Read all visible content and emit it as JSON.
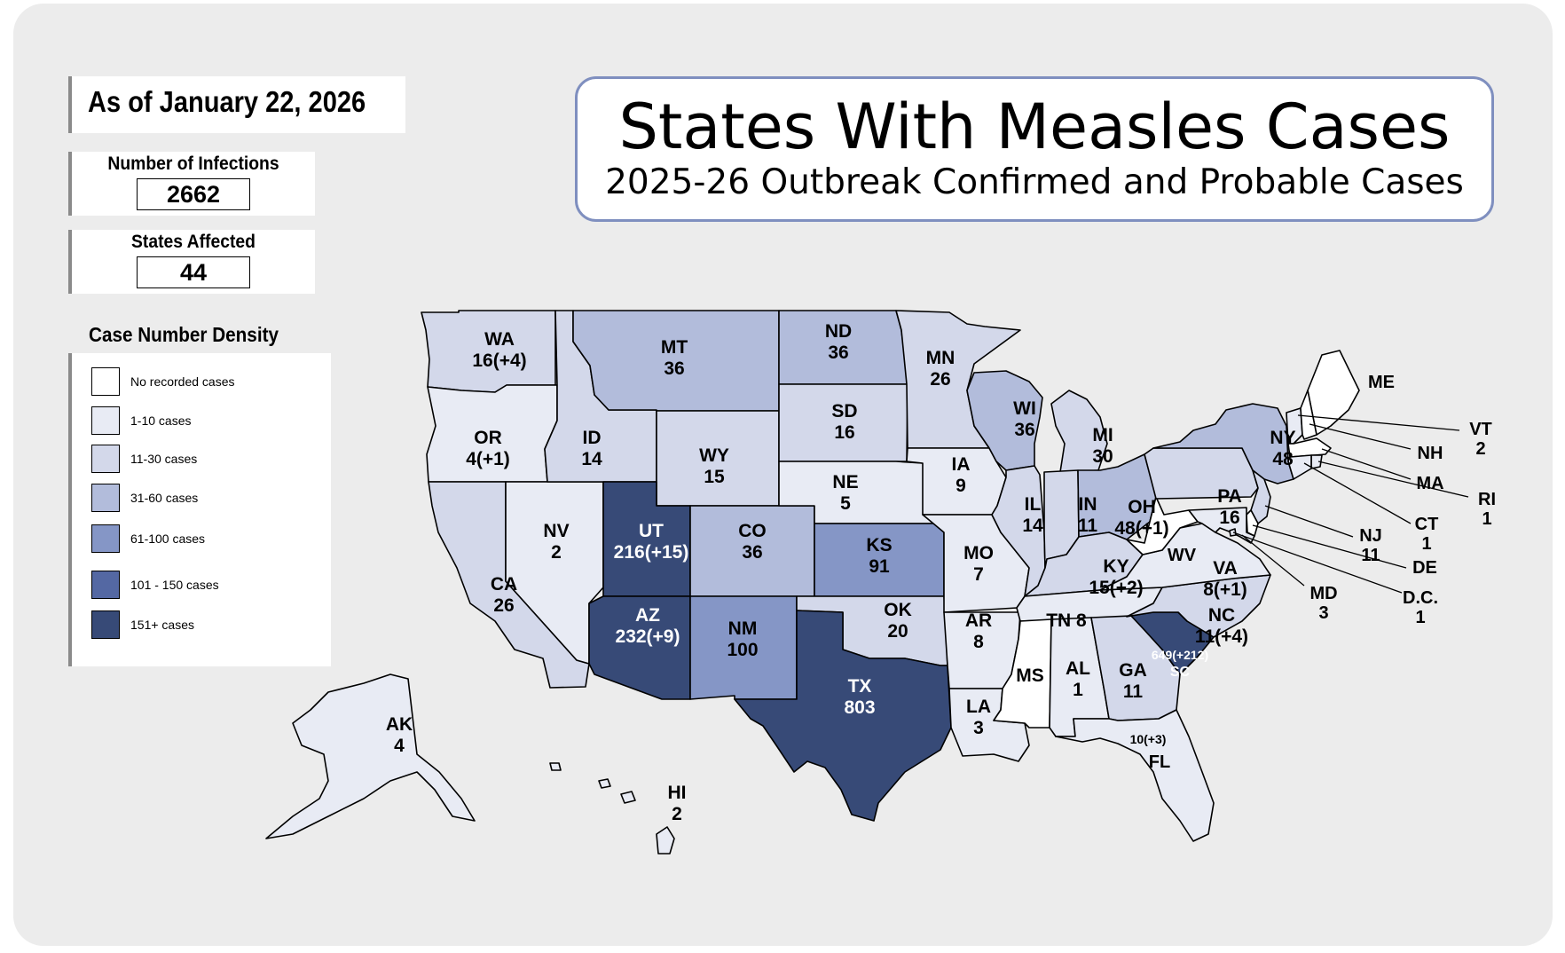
{
  "as_of": "As of January 22, 2026",
  "title": "States With Measles Cases",
  "subtitle": "2025-26 Outbreak Confirmed and Probable Cases",
  "infections": {
    "label": "Number of Infections",
    "value": "2662"
  },
  "states_affected": {
    "label": "States Affected",
    "value": "44"
  },
  "legend": {
    "title": "Case Number Density",
    "items": [
      {
        "label": "No recorded cases",
        "color": "#ffffff"
      },
      {
        "label": "1-10 cases",
        "color": "#e8ebf4"
      },
      {
        "label": "11-30 cases",
        "color": "#d3d8ea"
      },
      {
        "label": "31-60 cases",
        "color": "#b2bcdb"
      },
      {
        "label": "61-100 cases",
        "color": "#8596c6"
      },
      {
        "label": "101 - 150 cases",
        "color": "#5468a3"
      },
      {
        "label": "151+ cases",
        "color": "#374a77"
      }
    ]
  },
  "states": [
    {
      "abbr": "WA",
      "cases": "16(+4)",
      "tier": 2
    },
    {
      "abbr": "OR",
      "cases": "4(+1)",
      "tier": 1
    },
    {
      "abbr": "CA",
      "cases": "26",
      "tier": 2
    },
    {
      "abbr": "NV",
      "cases": "2",
      "tier": 1
    },
    {
      "abbr": "ID",
      "cases": "14",
      "tier": 2
    },
    {
      "abbr": "MT",
      "cases": "36",
      "tier": 3
    },
    {
      "abbr": "WY",
      "cases": "15",
      "tier": 2
    },
    {
      "abbr": "UT",
      "cases": "216(+15)",
      "tier": 6
    },
    {
      "abbr": "AZ",
      "cases": "232(+9)",
      "tier": 6
    },
    {
      "abbr": "CO",
      "cases": "36",
      "tier": 3
    },
    {
      "abbr": "NM",
      "cases": "100",
      "tier": 4
    },
    {
      "abbr": "ND",
      "cases": "36",
      "tier": 3
    },
    {
      "abbr": "SD",
      "cases": "16",
      "tier": 2
    },
    {
      "abbr": "NE",
      "cases": "5",
      "tier": 1
    },
    {
      "abbr": "KS",
      "cases": "91",
      "tier": 4
    },
    {
      "abbr": "OK",
      "cases": "20",
      "tier": 2
    },
    {
      "abbr": "TX",
      "cases": "803",
      "tier": 6
    },
    {
      "abbr": "MN",
      "cases": "26",
      "tier": 2
    },
    {
      "abbr": "IA",
      "cases": "9",
      "tier": 1
    },
    {
      "abbr": "MO",
      "cases": "7",
      "tier": 1
    },
    {
      "abbr": "AR",
      "cases": "8",
      "tier": 1
    },
    {
      "abbr": "LA",
      "cases": "3",
      "tier": 1
    },
    {
      "abbr": "WI",
      "cases": "36",
      "tier": 3
    },
    {
      "abbr": "IL",
      "cases": "14",
      "tier": 2
    },
    {
      "abbr": "MI",
      "cases": "30",
      "tier": 2
    },
    {
      "abbr": "IN",
      "cases": "11",
      "tier": 2
    },
    {
      "abbr": "OH",
      "cases": "48(+1)",
      "tier": 3
    },
    {
      "abbr": "KY",
      "cases": "15(+2)",
      "tier": 2
    },
    {
      "abbr": "TN",
      "cases": "8",
      "tier": 1
    },
    {
      "abbr": "MS",
      "cases": "",
      "tier": 0
    },
    {
      "abbr": "AL",
      "cases": "1",
      "tier": 1
    },
    {
      "abbr": "GA",
      "cases": "11",
      "tier": 2
    },
    {
      "abbr": "FL",
      "cases": "10(+3)",
      "tier": 1
    },
    {
      "abbr": "SC",
      "cases": "649(+212)",
      "tier": 6
    },
    {
      "abbr": "NC",
      "cases": "11(+4)",
      "tier": 2
    },
    {
      "abbr": "VA",
      "cases": "8(+1)",
      "tier": 1
    },
    {
      "abbr": "WV",
      "cases": "",
      "tier": 0
    },
    {
      "abbr": "PA",
      "cases": "16",
      "tier": 2
    },
    {
      "abbr": "NY",
      "cases": "48",
      "tier": 3
    },
    {
      "abbr": "ME",
      "cases": "",
      "tier": 0
    },
    {
      "abbr": "VT",
      "cases": "2",
      "tier": 1
    },
    {
      "abbr": "NH",
      "cases": "",
      "tier": 0
    },
    {
      "abbr": "MA",
      "cases": "",
      "tier": 0
    },
    {
      "abbr": "RI",
      "cases": "1",
      "tier": 1
    },
    {
      "abbr": "CT",
      "cases": "1",
      "tier": 1
    },
    {
      "abbr": "NJ",
      "cases": "11",
      "tier": 2
    },
    {
      "abbr": "DE",
      "cases": "",
      "tier": 0
    },
    {
      "abbr": "MD",
      "cases": "3",
      "tier": 1
    },
    {
      "abbr": "D.C.",
      "cases": "1",
      "tier": 1
    },
    {
      "abbr": "AK",
      "cases": "4",
      "tier": 1
    },
    {
      "abbr": "HI",
      "cases": "2",
      "tier": 1
    }
  ]
}
